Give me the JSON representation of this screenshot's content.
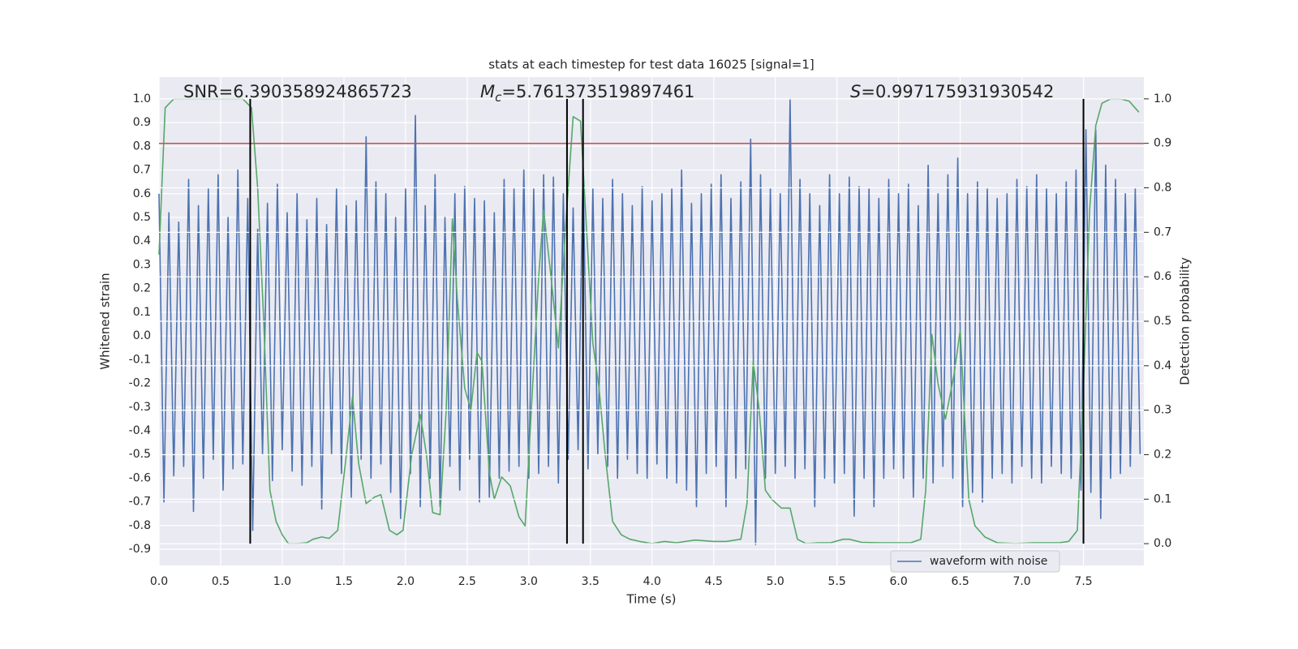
{
  "chart_data": {
    "type": "line",
    "title": "stats at each timestep for test data 16025 [signal=1]",
    "x_label": "Time (s)",
    "y_label": "Whitened strain",
    "y2_label": "Detection probability",
    "annotations": [
      {
        "text": "SNR=6.390358924865723"
      },
      {
        "symbol": "M",
        "subscript": "c",
        "text": "=5.761373519897461"
      },
      {
        "symbol": "S",
        "text": "=0.997175931930542"
      }
    ],
    "xlim": [
      0,
      7.99
    ],
    "ylim": [
      -0.968,
      1.092
    ],
    "y2lim": [
      -0.049,
      1.049
    ],
    "xticks": [
      {
        "value": 0,
        "label": "0.0"
      },
      {
        "value": 0.5,
        "label": "0.5"
      },
      {
        "value": 1,
        "label": "1.0"
      },
      {
        "value": 1.5,
        "label": "1.5"
      },
      {
        "value": 2,
        "label": "2.0"
      },
      {
        "value": 2.5,
        "label": "2.5"
      },
      {
        "value": 3,
        "label": "3.0"
      },
      {
        "value": 3.5,
        "label": "3.5"
      },
      {
        "value": 4,
        "label": "4.0"
      },
      {
        "value": 4.5,
        "label": "4.5"
      },
      {
        "value": 5,
        "label": "5.0"
      },
      {
        "value": 5.5,
        "label": "5.5"
      },
      {
        "value": 6,
        "label": "6.0"
      },
      {
        "value": 6.5,
        "label": "6.5"
      },
      {
        "value": 7,
        "label": "7.0"
      },
      {
        "value": 7.5,
        "label": "7.5"
      }
    ],
    "yticks": [
      {
        "value": 1,
        "label": "1.0"
      },
      {
        "value": 0.9,
        "label": "0.9"
      },
      {
        "value": 0.8,
        "label": "0.8"
      },
      {
        "value": 0.7,
        "label": "0.7"
      },
      {
        "value": 0.6,
        "label": "0.6"
      },
      {
        "value": 0.5,
        "label": "0.5"
      },
      {
        "value": 0.4,
        "label": "0.4"
      },
      {
        "value": 0.3,
        "label": "0.3"
      },
      {
        "value": 0.2,
        "label": "0.2"
      },
      {
        "value": 0.1,
        "label": "0.1"
      },
      {
        "value": 0,
        "label": "0.0"
      },
      {
        "value": -0.1,
        "label": "-0.1"
      },
      {
        "value": -0.2,
        "label": "-0.2"
      },
      {
        "value": -0.3,
        "label": "-0.3"
      },
      {
        "value": -0.4,
        "label": "-0.4"
      },
      {
        "value": -0.5,
        "label": "-0.5"
      },
      {
        "value": -0.6,
        "label": "-0.6"
      },
      {
        "value": -0.7,
        "label": "-0.7"
      },
      {
        "value": -0.8,
        "label": "-0.8"
      },
      {
        "value": -0.9,
        "label": "-0.9"
      }
    ],
    "y2ticks": [
      {
        "value": 1,
        "label": "1.0"
      },
      {
        "value": 0.9,
        "label": "0.9"
      },
      {
        "value": 0.8,
        "label": "0.8"
      },
      {
        "value": 0.7,
        "label": "0.7"
      },
      {
        "value": 0.6,
        "label": "0.6"
      },
      {
        "value": 0.5,
        "label": "0.5"
      },
      {
        "value": 0.4,
        "label": "0.4"
      },
      {
        "value": 0.3,
        "label": "0.3"
      },
      {
        "value": 0.2,
        "label": "0.2"
      },
      {
        "value": 0.1,
        "label": "0.1"
      },
      {
        "value": 0,
        "label": "0.0"
      }
    ],
    "grid": true,
    "legend": "lower right",
    "series": [
      {
        "name": "waveform with noise",
        "color": "#4c72b0",
        "x": [
          0,
          0.04,
          0.08,
          0.12,
          0.16,
          0.2,
          0.24,
          0.28,
          0.32,
          0.36,
          0.4,
          0.44,
          0.48,
          0.52,
          0.56,
          0.6,
          0.64,
          0.68,
          0.72,
          0.76,
          0.8,
          0.84,
          0.88,
          0.92,
          0.96,
          1,
          1.04,
          1.08,
          1.12,
          1.16,
          1.2,
          1.24,
          1.28,
          1.32,
          1.36,
          1.4,
          1.44,
          1.48,
          1.52,
          1.56,
          1.6,
          1.64,
          1.68,
          1.72,
          1.76,
          1.8,
          1.84,
          1.88,
          1.92,
          1.96,
          2,
          2.04,
          2.08,
          2.12,
          2.16,
          2.2,
          2.24,
          2.28,
          2.32,
          2.36,
          2.4,
          2.44,
          2.48,
          2.52,
          2.56,
          2.6,
          2.64,
          2.68,
          2.72,
          2.76,
          2.8,
          2.84,
          2.88,
          2.92,
          2.96,
          3,
          3.04,
          3.08,
          3.12,
          3.16,
          3.2,
          3.24,
          3.28,
          3.32,
          3.36,
          3.4,
          3.44,
          3.48,
          3.52,
          3.56,
          3.6,
          3.64,
          3.68,
          3.72,
          3.76,
          3.8,
          3.84,
          3.88,
          3.92,
          3.96,
          4,
          4.04,
          4.08,
          4.12,
          4.16,
          4.2,
          4.24,
          4.28,
          4.32,
          4.36,
          4.4,
          4.44,
          4.48,
          4.52,
          4.56,
          4.6,
          4.64,
          4.68,
          4.72,
          4.76,
          4.8,
          4.84,
          4.88,
          4.92,
          4.96,
          5,
          5.04,
          5.08,
          5.12,
          5.16,
          5.2,
          5.24,
          5.28,
          5.32,
          5.36,
          5.4,
          5.44,
          5.48,
          5.52,
          5.56,
          5.6,
          5.64,
          5.68,
          5.72,
          5.76,
          5.8,
          5.84,
          5.88,
          5.92,
          5.96,
          6,
          6.04,
          6.08,
          6.12,
          6.16,
          6.2,
          6.24,
          6.28,
          6.32,
          6.36,
          6.4,
          6.44,
          6.48,
          6.52,
          6.56,
          6.6,
          6.64,
          6.68,
          6.72,
          6.76,
          6.8,
          6.84,
          6.88,
          6.92,
          6.96,
          7,
          7.04,
          7.08,
          7.12,
          7.16,
          7.2,
          7.24,
          7.28,
          7.32,
          7.36,
          7.4,
          7.44,
          7.48,
          7.52,
          7.56,
          7.6,
          7.64,
          7.68,
          7.72,
          7.76,
          7.8,
          7.84,
          7.88,
          7.92,
          7.96
        ],
        "values": [
          0.6,
          -0.7,
          0.52,
          -0.59,
          0.48,
          -0.55,
          0.66,
          -0.74,
          0.55,
          -0.6,
          0.62,
          -0.52,
          0.68,
          -0.65,
          0.5,
          -0.56,
          0.7,
          -0.54,
          0.58,
          -0.82,
          0.45,
          -0.5,
          0.56,
          -0.61,
          0.64,
          -0.48,
          0.52,
          -0.57,
          0.6,
          -0.63,
          0.49,
          -0.55,
          0.58,
          -0.73,
          0.47,
          -0.5,
          0.62,
          -0.58,
          0.55,
          -0.68,
          0.57,
          -0.52,
          0.84,
          -0.6,
          0.65,
          -0.54,
          0.6,
          -0.66,
          0.5,
          -0.77,
          0.62,
          -0.58,
          0.93,
          -0.72,
          0.55,
          -0.6,
          0.68,
          -0.72,
          0.5,
          -0.55,
          0.6,
          -0.65,
          0.63,
          -0.52,
          0.58,
          -0.7,
          0.57,
          -0.68,
          0.52,
          -0.6,
          0.66,
          -0.57,
          0.62,
          -0.55,
          0.7,
          -0.6,
          0.62,
          -0.58,
          0.68,
          -0.55,
          0.67,
          -0.62,
          0.6,
          -0.52,
          0.54,
          -0.48,
          0.72,
          -0.56,
          0.62,
          -0.5,
          0.58,
          -0.55,
          0.66,
          -0.6,
          0.6,
          -0.52,
          0.55,
          -0.58,
          0.63,
          -0.6,
          0.57,
          -0.54,
          0.6,
          -0.6,
          0.62,
          -0.62,
          0.7,
          -0.65,
          0.56,
          -0.72,
          0.6,
          -0.58,
          0.64,
          -0.55,
          0.68,
          -0.72,
          0.58,
          -0.6,
          0.65,
          -0.56,
          0.83,
          -0.88,
          0.68,
          -0.6,
          0.62,
          -0.58,
          0.6,
          -0.55,
          1.0,
          -0.6,
          0.66,
          -0.56,
          0.6,
          -0.72,
          0.55,
          -0.6,
          0.68,
          -0.62,
          0.6,
          -0.58,
          0.67,
          -0.76,
          0.63,
          -0.6,
          0.62,
          -0.72,
          0.58,
          -0.6,
          0.66,
          -0.56,
          0.6,
          -0.6,
          0.64,
          -0.68,
          0.55,
          -0.6,
          0.72,
          -0.62,
          0.6,
          -0.55,
          0.68,
          -0.6,
          0.75,
          -0.72,
          0.6,
          -0.66,
          0.65,
          -0.7,
          0.62,
          -0.6,
          0.58,
          -0.58,
          0.6,
          -0.62,
          0.66,
          -0.55,
          0.63,
          -0.6,
          0.68,
          -0.62,
          0.62,
          -0.55,
          0.6,
          -0.58,
          0.65,
          -0.6,
          0.7,
          -0.65,
          0.87,
          -0.66,
          0.87,
          -0.77,
          0.72,
          -0.6,
          0.66,
          -0.58,
          0.6,
          -0.55,
          0.62,
          -0.5
        ]
      },
      {
        "color": "#55a868",
        "axis": "y2",
        "x": [
          0,
          0.05,
          0.12,
          0.3,
          0.55,
          0.68,
          0.75,
          0.8,
          0.85,
          0.9,
          0.95,
          1,
          1.05,
          1.12,
          1.2,
          1.25,
          1.32,
          1.38,
          1.45,
          1.52,
          1.57,
          1.62,
          1.68,
          1.75,
          1.8,
          1.87,
          1.93,
          1.98,
          2.05,
          2.12,
          2.17,
          2.22,
          2.28,
          2.33,
          2.38,
          2.42,
          2.48,
          2.53,
          2.58,
          2.62,
          2.68,
          2.72,
          2.78,
          2.85,
          2.92,
          2.97,
          3.02,
          3.08,
          3.12,
          3.18,
          3.24,
          3.3,
          3.36,
          3.42,
          3.47,
          3.52,
          3.57,
          3.62,
          3.68,
          3.75,
          3.82,
          3.9,
          4,
          4.1,
          4.2,
          4.35,
          4.5,
          4.6,
          4.72,
          4.77,
          4.82,
          4.87,
          4.92,
          4.97,
          5.05,
          5.12,
          5.18,
          5.25,
          5.35,
          5.45,
          5.55,
          5.6,
          5.7,
          5.85,
          6,
          6.1,
          6.18,
          6.22,
          6.27,
          6.32,
          6.38,
          6.45,
          6.5,
          6.57,
          6.62,
          6.7,
          6.8,
          6.95,
          7.1,
          7.3,
          7.38,
          7.45,
          7.5,
          7.55,
          7.6,
          7.65,
          7.72,
          7.8,
          7.87,
          7.95
        ],
        "values": [
          0.65,
          0.98,
          1.0,
          1.0,
          1.0,
          1.0,
          0.98,
          0.8,
          0.5,
          0.12,
          0.05,
          0.02,
          0.0,
          0.0,
          0.002,
          0.01,
          0.015,
          0.012,
          0.03,
          0.2,
          0.33,
          0.18,
          0.09,
          0.105,
          0.11,
          0.03,
          0.02,
          0.03,
          0.2,
          0.29,
          0.2,
          0.07,
          0.065,
          0.3,
          0.73,
          0.55,
          0.35,
          0.3,
          0.43,
          0.41,
          0.16,
          0.1,
          0.15,
          0.13,
          0.06,
          0.04,
          0.3,
          0.6,
          0.75,
          0.6,
          0.44,
          0.72,
          0.96,
          0.95,
          0.7,
          0.45,
          0.35,
          0.2,
          0.05,
          0.02,
          0.01,
          0.005,
          0.0,
          0.005,
          0.002,
          0.008,
          0.005,
          0.005,
          0.01,
          0.09,
          0.41,
          0.3,
          0.12,
          0.1,
          0.08,
          0.08,
          0.01,
          0.0,
          0.002,
          0.002,
          0.01,
          0.01,
          0.003,
          0.002,
          0.002,
          0.002,
          0.01,
          0.12,
          0.47,
          0.36,
          0.28,
          0.38,
          0.48,
          0.1,
          0.04,
          0.015,
          0.002,
          0.0,
          0.002,
          0.002,
          0.005,
          0.03,
          0.35,
          0.75,
          0.94,
          0.99,
          1.0,
          1.0,
          0.995,
          0.97
        ]
      }
    ],
    "threshold": {
      "value": 0.9,
      "axis": "y2",
      "color": "#c44e52"
    },
    "vlines": [
      0.74,
      3.31,
      3.44,
      7.5
    ],
    "vline_color": "#000000"
  }
}
